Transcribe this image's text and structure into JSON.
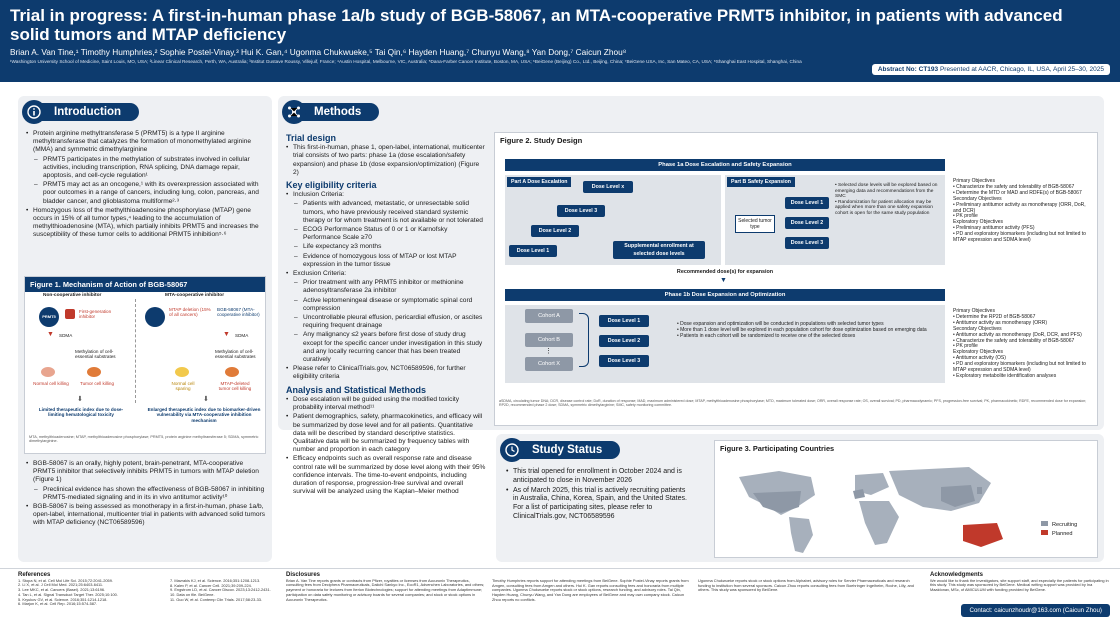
{
  "header": {
    "title": "Trial in progress: A first-in-human phase 1a/b study of BGB-58067, an MTA-cooperative PRMT5 inhibitor, in patients with advanced solid tumors and MTAP deficiency",
    "authors": "Brian A. Van Tine,¹ Timothy Humphries,² Sophie Postel-Vinay,³ Hui K. Gan,⁴ Ugonma Chukwueke,⁵ Tai Qin,⁶ Hayden Huang,⁷ Chunyu Wang,⁸ Yan Dong,⁷ Caicun Zhou⁸",
    "affiliations": "¹Washington University School of Medicine, Saint Louis, MO, USA; ²Linear Clinical Research, Perth, WA, Australia; ³Institut Gustave Roussy, Villejuif, France; ⁴Austin Hospital, Melbourne, VIC, Australia; ⁵Dana-Farber Cancer Institute, Boston, MA, USA; ⁶BeiGene (Beijing) Co., Ltd., Beijing, China; ⁷BeiGene USA, Inc, San Mateo, CA, USA; ⁸Shanghai East Hospital, Shanghai, China",
    "abstract_label": "Abstract No: CT193",
    "abstract_text": " Presented at AACR, Chicago, IL, USA, April 25–30, 2025"
  },
  "intro": {
    "title": "Introduction",
    "b1": "Protein arginine methyltransferase 5 (PRMT5) is a type II arginine methyltransferase that catalyzes the formation of monomethylated arginine (MMA) and symmetric dimethylarginine",
    "b1a": "PRMT5 participates in the methylation of substrates involved in cellular activities, including transcription, RNA splicing, DNA damage repair, apoptosis, and cell-cycle regulation¹",
    "b1b": "PRMT5 may act as an oncogene,¹ with its overexpression associated with poor outcomes in a range of cancers, including lung, colon, pancreas, and bladder cancer, and glioblastoma multiforme²·³",
    "b2": "Homozygous loss of the methylthioadenosine phosphorylase (MTAP) gene occurs in 15% of all tumor types,⁴ leading to the accumulation of methylthioadenosine (MTA), which partially inhibits PRMT5 and increases the susceptibility of these tumor cells to additional PRMT5 inhibition⁵·⁶",
    "fig_title": "Figure 1. Mechanism of Action of BGB-58067",
    "fig_left": "Non-cooperative inhibitor",
    "fig_right": "MTA-cooperative inhibitor",
    "fig_prmt5": "PRMT5",
    "fig_inhib": "First-generation inhibitor",
    "fig_mtap": "MTAP deletion (15% of all cancers)",
    "fig_bgb": "BGB-58067 (MTA-cooperative inhibitor)",
    "fig_sdma": "SDMA",
    "fig_meth": "Methylation of cell-essential substrates",
    "fig_normal": "Normal cell killing",
    "fig_tumor": "Tumor cell killing",
    "fig_normal2": "Normal cell sparing",
    "fig_mtapdel": "MTAP-deleted tumor cell killing",
    "fig_cap1": "Limited therapeutic index due to dose-limiting hematological toxicity",
    "fig_cap2": "Enlarged therapeutic index due to biomarker-driven vulnerability via MTA-cooperative inhibition mechanism",
    "fig_abbr": "MTA, methylthioadenosine; MTAP, methylthioadenosine phosphorylase; PRMT5, protein arginine methyltransferase 5; SDMA, symmetric dimethylarginine.",
    "b3": "BGB-58067 is an orally, highly potent, brain-penetrant, MTA-cooperative PRMT5 inhibitor that selectively inhibits PRMT5 in tumors with MTAP deletion (Figure 1)",
    "b3a": "Preclinical evidence has shown the effectiveness of BGB-58067 in inhibiting PRMT5-mediated signaling and in its in vivo antitumor activity¹⁰",
    "b4": "BGB-58067 is being assessed as monotherapy in a first-in-human, phase 1a/b, open-label, international, multicenter trial in patients with advanced solid tumors with MTAP deficiency (NCT06589596)"
  },
  "methods": {
    "title": "Methods",
    "h_design": "Trial design",
    "design": "This first-in-human, phase 1, open-label, international, multicenter trial consists of two parts: phase 1a (dose escalation/safety expansion) and phase 1b (dose expansion/optimization) (Figure 2)",
    "h_elig": "Key eligibility criteria",
    "inc": "Inclusion Criteria:",
    "inc1": "Patients with advanced, metastatic, or unresectable solid tumors, who have previously received standard systemic therapy or for whom treatment is not available or not tolerated",
    "inc2": "ECOG Performance Status of 0 or 1 or Karnofsky Performance Scale ≥70",
    "inc3": "Life expectancy ≥3 months",
    "inc4": "Evidence of homozygous loss of MTAP or lost MTAP expression in the tumor tissue",
    "exc": "Exclusion Criteria:",
    "exc1": "Prior treatment with any PRMT5 inhibitor or methionine adenosyltransferase 2a inhibitor",
    "exc2": "Active leptomeningeal disease or symptomatic spinal cord compression",
    "exc3": "Uncontrollable pleural effusion, pericardial effusion, or ascites requiring frequent drainage",
    "exc4": "Any malignancy ≤2 years before first dose of study drug except for the specific cancer under investigation in this study and any locally recurring cancer that has been treated curatively",
    "ct": "Please refer to ClinicalTrials.gov, NCT06589596, for further eligibility criteria",
    "h_anal": "Analysis and Statistical Methods",
    "an1": "Dose escalation will be guided using the modified toxicity probability interval method¹¹",
    "an2": "Patient demographics, safety, pharmacokinetics, and efficacy will be summarized by dose level and for all patients. Quantitative data will be described by standard descriptive statistics. Qualitative data will be summarized by frequency tables with number and proportion in each category",
    "an3": "Efficacy endpoints such as overall response rate and disease control rate will be summarized by dose level along with their 95% confidence intervals. The time-to-event endpoints, including duration of response, progression-free survival and overall survival will be analyzed using the Kaplan–Meier method"
  },
  "fig2": {
    "title": "Figure 2. Study Design",
    "p1a": "Phase 1a Dose Escalation and Safety Expansion",
    "partA": "Part A Dose Escalation",
    "partB": "Part B Safety Expansion",
    "dosex": "Dose Level x",
    "dose3": "Dose Level 3",
    "dose2": "Dose Level 2",
    "dose1": "Dose Level 1",
    "supp": "Supplemental enrollment at selected dose levels",
    "sel": "Selected tumor type",
    "bnotes": "• Selected dose levels will be explored based on emerging data and recommendations from the SMC\n• Randomization for patient allocation may be applied when more than one safety expansion cohort is open for the same study population",
    "rdfe": "Recommended dose(s) for expansion",
    "p1b": "Phase 1b Dose Expansion and Optimization",
    "cohA": "Cohort A",
    "cohB": "Cohort B",
    "cohX": "Cohort X",
    "p1bnotes": "• Dose expansion and optimization will be conducted in populations with selected tumor types\n• More than 1 dose level will be explored in each population cohort for dose optimization based on emerging data\n• Patients in each cohort will be randomized to receive one of the selected doses",
    "obj1a": "Primary Objectives\n• Characterize the safety and tolerability of BGB-58067\n• Determine the MTD or MAD and RDFE(s) of BGB-58067\nSecondary Objectives\n• Preliminary antitumor activity as monotherapy (ORR, DoR, and DCR)\n• PK profile\nExploratory Objectives\n• Preliminary antitumor activity (PFS)\n• PD and exploratory biomarkers (including but not limited to MTAP expression and SDMA level)",
    "obj1b": "Primary Objectives\n• Determine the RP2D of BGB-58067\n• Antitumor activity as monotherapy (ORR)\nSecondary Objectives\n• Antitumor activity as monotherapy (DoR, DCR, and PFS)\n• Characterize the safety and tolerability of BGB-58067\n• PK profile\nExploratory Objectives\n• Antitumor activity (OS)\n• PD and exploratory biomarkers (including but not limited to MTAP expression and SDMA level)\n• Exploratory metabolite identification analyses",
    "abbr": "aSDMA, circulating tumor DNA; DCR, disease control rate; DoR, duration of response; MAD, maximum administered dose; MTAP, methylthioadenosine phosphorylase; MTD, maximum tolerated dose; ORR, overall response rate; OS, overall survival; PD, pharmacodynamic; PFS, progression-free survival; PK, pharmacokinetic; RDFE, recommended dose for expansion; RP2D, recommended phase 2 dose; SDMA, symmetric dimethylarginine; SMC, safety monitoring committee."
  },
  "status": {
    "title": "Study Status",
    "s1": "This trial opened for enrollment in October 2024 and is anticipated to close in November 2026",
    "s2": "As of March 2025, this trial is actively recruiting patients in Australia, China, Korea, Spain, and the United States. For a list of participating sites, please refer to ClinicalTrials.gov, NCT06589596"
  },
  "fig3": {
    "title": "Figure 3. Participating Countries",
    "legend": [
      "Recruiting",
      "Planned"
    ]
  },
  "colors": {
    "navy": "#0d3b6e",
    "recruit": "#8e98a6",
    "planned": "#c0392b"
  },
  "footer": {
    "refs_h": "References",
    "refs1": "1. Stopa N, et al. Cell Mol Life Sci. 2015;72:2041-2059.\n2. Li X, et al. J Cell Mol Med. 2021;25:6403-6411.\n3. Lee MKC, et al. Cancers (Basel). 2021;13:6196.\n4. Tan L, et al. Signal Transduct Target Ther. 2025;10:100.\n5. Kryukov GV, et al. Science. 2016;351:1214-1218.\n6. Marjon K, et al. Cell Rep. 2016;15:574-587.",
    "refs2": "7. Mavrakis KJ, et al. Science. 2016;351:1208-1213.\n8. Kalev P, et al. Cancer Cell. 2021;39:209-224.\n9. Engstrom LD, et al. Cancer Discov. 2023;13:2412-2431.\n10. Data on file. BeiGene.\n11. Guo W, et al. Contemp Clin Trials. 2017;58:23-33.",
    "disc_h": "Disclosures",
    "disc1": "Brian A. Van Tine reports grants or contracts from Pfizer, royalties or licenses from Accuronix Therapeutics, consulting fees from Deciphera Pharmaceuticals, Daiichi Sankyo Inc., EcoR1, Advenchen Laboratories, and others; payment or honoraria for lectures from Iterion Biotechnologies; support for attending meetings from Adaptimmune; participation on data safety monitoring or advisory boards for several companies; and stock or stock options in Accuronix Therapeutics.",
    "disc2": "Timothy Humphries reports support for attending meetings from BeiGene. Sophie Postel-Vinay reports grants from Amgen, consulting fees from Amgen and others. Hui K. Gan reports consulting fees and honoraria from multiple companies. Ugonma Chukwueke reports stock or stock options, research funding, and advisory roles. Tai Qin, Hayden Huang, Chunyu Wang, and Yan Dong are employees of BeiGene and may own company stock. Caicun Zhou reports no conflicts.",
    "disc3": "Ugonma Chukwueke reports stock or stock options from Alphabet, advisory roles for Servier Pharmaceuticals and research funding to institution from several sponsors. Caicun Zhou reports consulting fees from Boehringer Ingelheim, Roche, Lilly, and others. This study was sponsored by BeiGene.",
    "ack_h": "Acknowledgments",
    "ack": "We would like to thank the investigators, site support staff, and especially the patients for participating in this study. This study was sponsored by BeiGene. Medical writing support was provided by Ina Maaldonav, MSc, of AMICULUM with funding provided by BeiGene.",
    "contact": "Contact: caicunzhoudr@163.com (Caicun Zhou)"
  }
}
